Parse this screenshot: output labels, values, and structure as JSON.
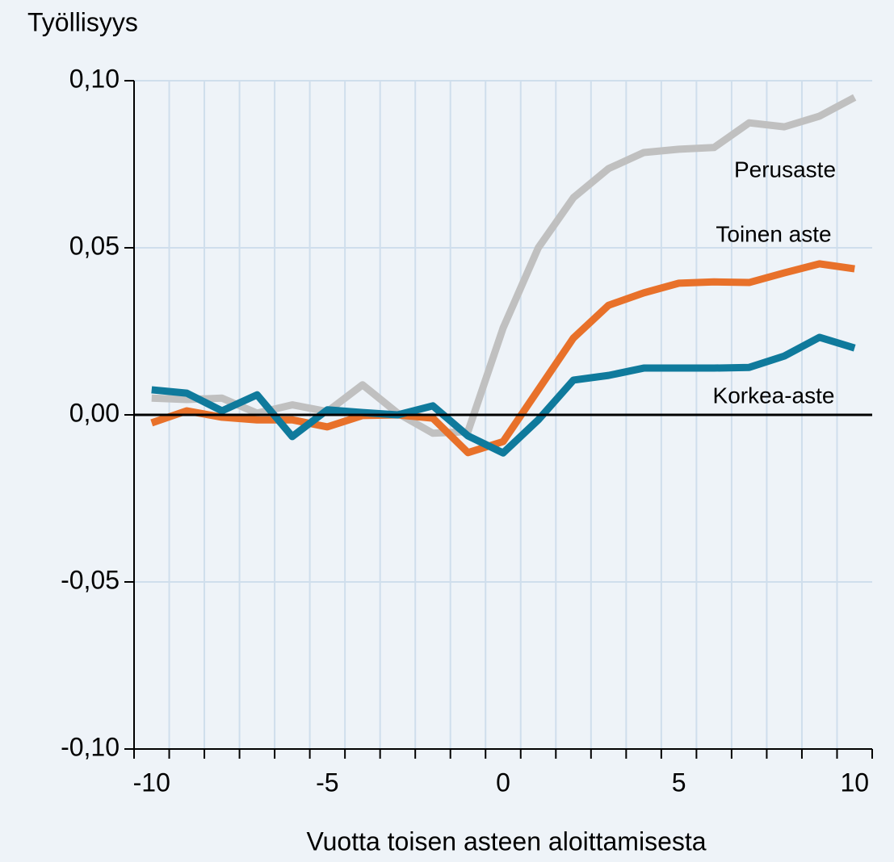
{
  "chart_data": {
    "type": "line",
    "title": "Työllisyys",
    "x_label": "Vuotta toisen asteen aloittamisesta",
    "categories": [
      "-10",
      null,
      null,
      null,
      null,
      "-5",
      null,
      null,
      null,
      null,
      "0",
      null,
      null,
      null,
      null,
      "5",
      null,
      null,
      null,
      null,
      "10"
    ],
    "ylim": [
      -0.1,
      0.1
    ],
    "yticks": [
      {
        "value": -0.1,
        "label": "-0,10"
      },
      {
        "value": -0.05,
        "label": "-0,05"
      },
      {
        "value": 0,
        "label": "0,00"
      },
      {
        "value": 0.05,
        "label": "0,05"
      },
      {
        "value": 0.1,
        "label": "0,10"
      }
    ],
    "grid": true,
    "series": [
      {
        "name": "Perusaste",
        "color": "#c0c0c0",
        "values": [
          0.005,
          0.0046,
          0.005,
          0.0005,
          0.003,
          0.001,
          0.009,
          0.0005,
          -0.0055,
          -0.005,
          0.026,
          0.05,
          0.065,
          0.0737,
          0.0785,
          0.0795,
          0.08,
          0.0874,
          0.0862,
          0.0894,
          0.095
        ]
      },
      {
        "name": "Toinen aste",
        "color": "#e8712a",
        "values": [
          -0.0024,
          0.0012,
          -0.0007,
          -0.0015,
          -0.0015,
          -0.0036,
          -0.0002,
          0,
          -0.001,
          -0.0113,
          -0.008,
          0.0075,
          0.023,
          0.0328,
          0.0365,
          0.0394,
          0.0398,
          0.0396,
          0.0425,
          0.0452,
          0.0437
        ]
      },
      {
        "name": "Korkea-aste",
        "color": "#0f7a9c",
        "values": [
          0.0075,
          0.0065,
          0.0012,
          0.006,
          -0.0065,
          0.0015,
          0.0007,
          0,
          0.0027,
          -0.0063,
          -0.0114,
          -0.0015,
          0.0104,
          0.0118,
          0.014,
          0.014,
          0.014,
          0.0142,
          0.0176,
          0.0232,
          0.02
        ]
      }
    ]
  }
}
